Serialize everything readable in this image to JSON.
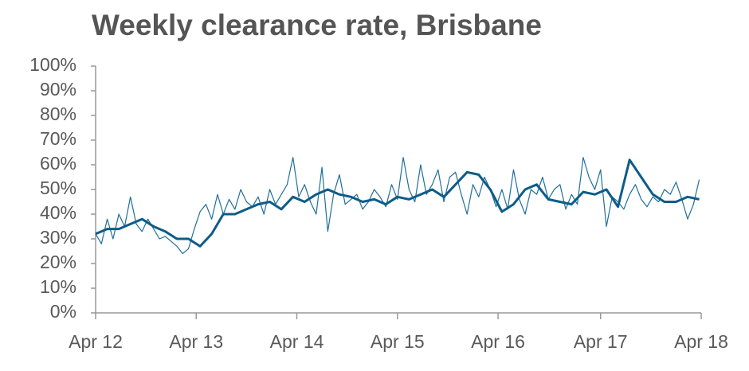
{
  "chart_data": {
    "type": "line",
    "title": "Weekly clearance rate, Brisbane",
    "series": [
      {
        "color": "#1f6f9a",
        "width": 1.2,
        "x": [
          0,
          3,
          6,
          9,
          12,
          15,
          18,
          21,
          24,
          27,
          30,
          33,
          36,
          39,
          42,
          45,
          48,
          51,
          54,
          57,
          60,
          63,
          66,
          69,
          72,
          75,
          78,
          81,
          84,
          87,
          90,
          93,
          96,
          99,
          102,
          105,
          108,
          111,
          114,
          117,
          120,
          123,
          126,
          129,
          132,
          135,
          138,
          141,
          144,
          147,
          150,
          153,
          156,
          159,
          162,
          165,
          168,
          171,
          174,
          177,
          180,
          183,
          186,
          189,
          192,
          195,
          198,
          201,
          204,
          207,
          210,
          213,
          216,
          219,
          222,
          225,
          228,
          231,
          234,
          237,
          240,
          243,
          246,
          249,
          252,
          255,
          258,
          261,
          264,
          267,
          270,
          273,
          276,
          279,
          282,
          285,
          288,
          291,
          294,
          297,
          300,
          303,
          306,
          309,
          312
        ],
        "values": [
          32,
          28,
          38,
          30,
          40,
          35,
          47,
          36,
          33,
          38,
          34,
          30,
          31,
          29,
          27,
          24,
          26,
          34,
          41,
          44,
          38,
          48,
          40,
          46,
          42,
          50,
          45,
          43,
          47,
          40,
          50,
          44,
          48,
          52,
          63,
          47,
          52,
          45,
          40,
          59,
          33,
          48,
          56,
          44,
          46,
          48,
          42,
          45,
          50,
          47,
          43,
          52,
          46,
          63,
          50,
          45,
          60,
          48,
          52,
          58,
          45,
          55,
          57,
          48,
          40,
          52,
          47,
          55,
          50,
          43,
          50,
          42,
          58,
          46,
          40,
          50,
          48,
          55,
          46,
          50,
          52,
          42,
          48,
          44,
          63,
          55,
          50,
          58,
          35,
          47,
          45,
          42,
          48,
          52,
          46,
          43,
          47,
          45,
          50,
          48,
          53,
          46,
          38,
          44,
          54
        ]
      },
      {
        "color": "#0d5c88",
        "width": 3,
        "x": [
          0,
          6,
          12,
          18,
          24,
          30,
          36,
          42,
          48,
          54,
          60,
          66,
          72,
          78,
          84,
          90,
          96,
          102,
          108,
          114,
          120,
          126,
          132,
          138,
          144,
          150,
          156,
          162,
          168,
          174,
          180,
          186,
          192,
          198,
          204,
          210,
          216,
          222,
          228,
          234,
          240,
          246,
          252,
          258,
          264,
          270,
          276,
          282,
          288,
          294,
          300,
          306,
          312
        ],
        "values": [
          32,
          34,
          34,
          36,
          38,
          35,
          33,
          30,
          30,
          27,
          32,
          40,
          40,
          42,
          44,
          45,
          42,
          47,
          45,
          48,
          50,
          48,
          47,
          45,
          46,
          44,
          47,
          46,
          48,
          50,
          47,
          52,
          57,
          56,
          50,
          41,
          44,
          50,
          52,
          46,
          45,
          44,
          49,
          48,
          50,
          43,
          62,
          55,
          48,
          45,
          45,
          47,
          46
        ]
      }
    ],
    "xlim": [
      0,
      313
    ],
    "xticks": [
      {
        "value": 0,
        "label": "Apr 12"
      },
      {
        "value": 52,
        "label": "Apr 13"
      },
      {
        "value": 104,
        "label": "Apr 14"
      },
      {
        "value": 156,
        "label": "Apr 15"
      },
      {
        "value": 208,
        "label": "Apr 16"
      },
      {
        "value": 261,
        "label": "Apr 17"
      },
      {
        "value": 313,
        "label": "Apr 18"
      }
    ],
    "ylim": [
      0,
      100
    ],
    "yticks": [
      {
        "value": 0,
        "label": "0%"
      },
      {
        "value": 10,
        "label": "10%"
      },
      {
        "value": 20,
        "label": "20%"
      },
      {
        "value": 30,
        "label": "30%"
      },
      {
        "value": 40,
        "label": "40%"
      },
      {
        "value": 50,
        "label": "50%"
      },
      {
        "value": 60,
        "label": "60%"
      },
      {
        "value": 70,
        "label": "70%"
      },
      {
        "value": 80,
        "label": "80%"
      },
      {
        "value": 90,
        "label": "90%"
      },
      {
        "value": 100,
        "label": "100%"
      }
    ],
    "grid": false
  }
}
